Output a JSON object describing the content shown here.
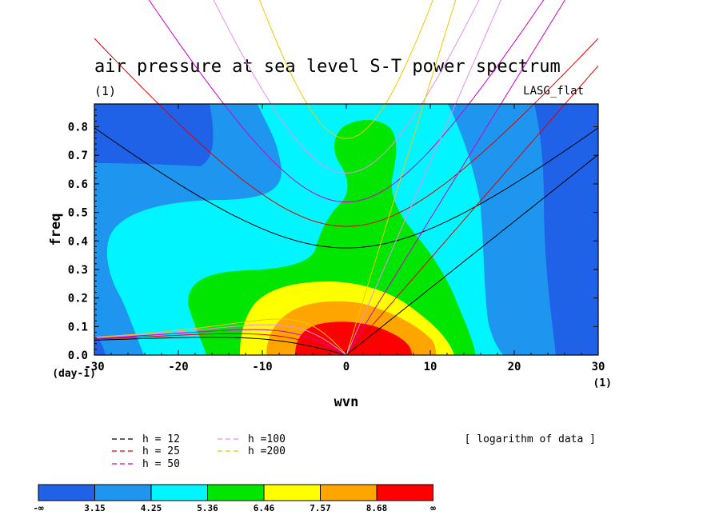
{
  "chart_data": {
    "type": "heatmap",
    "title": "air pressure at sea level S-T power spectrum",
    "subtitle_left": "(1)",
    "subtitle_right": "LASG_flat",
    "xlabel": "wvn",
    "ylabel": "freq",
    "x_unit": "(1)",
    "y_unit": "(day-1)",
    "xlim": [
      -30,
      30
    ],
    "ylim": [
      0,
      0.88
    ],
    "x_ticks": [
      -30,
      -20,
      -10,
      0,
      10,
      20,
      30
    ],
    "x_tick_labels": [
      "-30",
      "-20",
      "-10",
      "0",
      "10",
      "20",
      "30"
    ],
    "y_ticks": [
      0,
      0.1,
      0.2,
      0.3,
      0.4,
      0.5,
      0.6,
      0.7,
      0.8
    ],
    "y_tick_labels": [
      "0.0",
      "0.1",
      "0.2",
      "0.3",
      "0.4",
      "0.5",
      "0.6",
      "0.7",
      "0.8"
    ],
    "color_levels": [
      {
        "label": "-∞",
        "color": "#1f62e8"
      },
      {
        "label": "3.15",
        "color": "#1e96f0"
      },
      {
        "label": "4.25",
        "color": "#00f5ff"
      },
      {
        "label": "5.36",
        "color": "#00e600"
      },
      {
        "label": "6.46",
        "color": "#ffff00"
      },
      {
        "label": "7.57",
        "color": "#ffa500"
      },
      {
        "label": "8.68",
        "color": "#ff0000"
      }
    ],
    "color_top_label": "∞",
    "note": "[ logarithm of data ]",
    "dispersion_curves": [
      {
        "name": "h = 12",
        "color": "#000000",
        "h": 12
      },
      {
        "name": "h = 25",
        "color": "#e00000",
        "h": 25
      },
      {
        "name": "h = 50",
        "color": "#cc00cc",
        "h": 50
      },
      {
        "name": "h =100",
        "color": "#e88ee8",
        "h": 100
      },
      {
        "name": "h =200",
        "color": "#f0c800",
        "h": 200
      }
    ]
  }
}
